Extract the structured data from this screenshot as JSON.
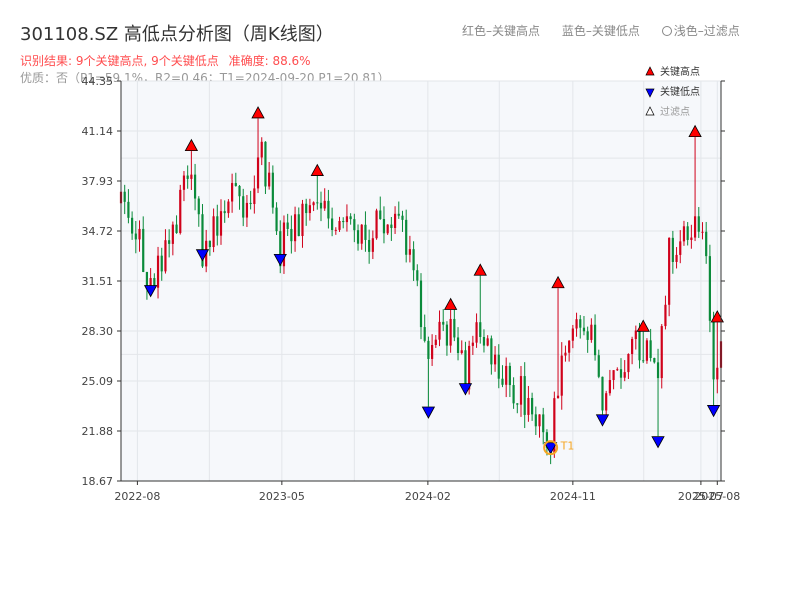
{
  "header": {
    "title": "301108.SZ 高低点分析图（周K线图）",
    "result": "识别结果: 9个关键高点, 9个关键低点",
    "accuracy": "准确度: 88.6%",
    "meta": "优质：否（P1=59.1%，R2=0.46；T1=2024-09-20 P1=20.81）",
    "legend_red": "红色–关键高点",
    "legend_blue": "蓝色–关键低点",
    "legend_light": "浅色–过滤点"
  },
  "colors": {
    "up": "#d0021b",
    "down": "#0a8a3a",
    "high_marker": "#ff0000",
    "low_marker": "#0000ff",
    "t1": "#f5a623"
  },
  "chart_data": {
    "type": "candlestick",
    "title": "301108.SZ 高低点分析图（周K线图）",
    "x_range": [
      "2022-07-01",
      "2025-08-08"
    ],
    "y_range": [
      18.67,
      44.35
    ],
    "y_ticks": [
      "18.67",
      "21.88",
      "25.09",
      "28.30",
      "31.51",
      "34.72",
      "37.93",
      "41.14",
      "44.35"
    ],
    "x_ticks": [
      {
        "label": "2022-08",
        "date": "2022-08-01"
      },
      {
        "label": "2023-05",
        "date": "2023-05-01"
      },
      {
        "label": "2024-02",
        "date": "2024-02-01"
      },
      {
        "label": "2024-11",
        "date": "2024-11-01"
      },
      {
        "label": "2025-07",
        "date": "2025-07-01"
      },
      {
        "label": "2025-08",
        "date": "2025-08-01"
      }
    ],
    "legend": [
      {
        "label": "关键高点",
        "marker": "triangle-up",
        "color": "#ff0000"
      },
      {
        "label": "关键低点",
        "marker": "triangle-down",
        "color": "#0000ff"
      },
      {
        "label": "过滤点",
        "marker": "triangle-up-light",
        "color": "#ffffff"
      }
    ],
    "key_highs": [
      {
        "date": "2022-11-11",
        "price": 40.2
      },
      {
        "date": "2023-03-17",
        "price": 42.3
      },
      {
        "date": "2023-07-07",
        "price": 38.6
      },
      {
        "date": "2024-03-15",
        "price": 30.0
      },
      {
        "date": "2024-05-10",
        "price": 32.2
      },
      {
        "date": "2024-10-04",
        "price": 31.4
      },
      {
        "date": "2025-03-14",
        "price": 28.6
      },
      {
        "date": "2025-06-20",
        "price": 41.1
      },
      {
        "date": "2025-08-01",
        "price": 29.2
      }
    ],
    "key_lows": [
      {
        "date": "2022-08-26",
        "price": 30.9
      },
      {
        "date": "2022-12-02",
        "price": 33.2
      },
      {
        "date": "2023-04-28",
        "price": 32.9
      },
      {
        "date": "2024-02-02",
        "price": 23.1
      },
      {
        "date": "2024-04-12",
        "price": 24.6
      },
      {
        "date": "2024-09-20",
        "price": 20.81
      },
      {
        "date": "2024-12-27",
        "price": 22.6
      },
      {
        "date": "2025-04-11",
        "price": 21.2
      },
      {
        "date": "2025-07-25",
        "price": 23.2
      }
    ],
    "t1": {
      "label": "T1",
      "date": "2024-09-20",
      "price": 20.81
    },
    "anchors": [
      [
        "2022-07-01",
        36.5
      ],
      [
        "2022-07-22",
        35.3
      ],
      [
        "2022-08-12",
        33.0
      ],
      [
        "2022-08-26",
        31.2
      ],
      [
        "2022-09-23",
        34.0
      ],
      [
        "2022-11-11",
        38.2
      ],
      [
        "2022-12-02",
        33.5
      ],
      [
        "2023-01-06",
        36.2
      ],
      [
        "2023-03-03",
        37.0
      ],
      [
        "2023-03-17",
        40.0
      ],
      [
        "2023-04-14",
        37.5
      ],
      [
        "2023-04-28",
        33.6
      ],
      [
        "2023-06-02",
        35.5
      ],
      [
        "2023-07-07",
        36.8
      ],
      [
        "2023-08-25",
        35.5
      ],
      [
        "2023-10-06",
        34.3
      ],
      [
        "2023-11-17",
        35.6
      ],
      [
        "2023-12-29",
        34.0
      ],
      [
        "2024-01-19",
        28.5
      ],
      [
        "2024-02-02",
        25.3
      ],
      [
        "2024-02-23",
        27.8
      ],
      [
        "2024-03-15",
        28.8
      ],
      [
        "2024-04-12",
        25.5
      ],
      [
        "2024-05-10",
        28.5
      ],
      [
        "2024-06-07",
        26.5
      ],
      [
        "2024-07-05",
        24.8
      ],
      [
        "2024-08-16",
        23.5
      ],
      [
        "2024-09-20",
        21.7
      ],
      [
        "2024-10-11",
        25.5
      ],
      [
        "2024-11-15",
        28.5
      ],
      [
        "2024-12-06",
        27.5
      ],
      [
        "2024-12-27",
        23.5
      ],
      [
        "2025-01-24",
        25.5
      ],
      [
        "2025-02-21",
        27.5
      ],
      [
        "2025-03-14",
        27.5
      ],
      [
        "2025-04-11",
        25.0
      ],
      [
        "2025-05-02",
        33.0
      ],
      [
        "2025-06-20",
        35.5
      ],
      [
        "2025-07-11",
        33.5
      ],
      [
        "2025-07-25",
        25.0
      ],
      [
        "2025-08-08",
        27.0
      ]
    ]
  }
}
